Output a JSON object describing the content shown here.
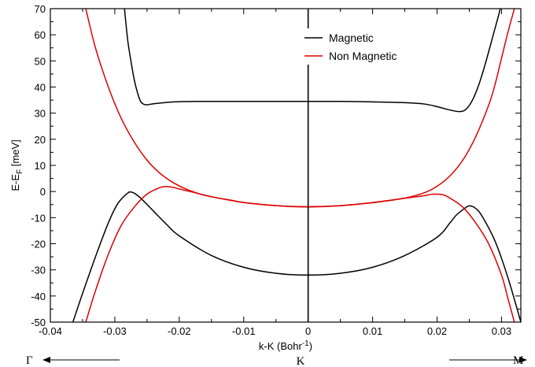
{
  "chart_data": {
    "type": "line",
    "xlabel": "k-K (Bohr",
    "xlabel_sup": "-1",
    "xlabel_close": ")",
    "ylabel": "E-E",
    "ylabel_sub": "F",
    "ylabel_unit": " [meV]",
    "xlim": [
      -0.04,
      0.033
    ],
    "ylim": [
      -50,
      70
    ],
    "xticks": [
      -0.04,
      -0.03,
      -0.02,
      -0.01,
      0,
      0.01,
      0.02,
      0.03
    ],
    "xtick_labels": [
      "-0.04",
      "-0.03",
      "-0.02",
      "-0.01",
      "0",
      "0.01",
      "0.02",
      "0.03"
    ],
    "yticks": [
      -50,
      -40,
      -30,
      -20,
      -10,
      0,
      10,
      20,
      30,
      40,
      50,
      60,
      70
    ],
    "ytick_labels": [
      "-50",
      "-40",
      "-30",
      "-20",
      "-10",
      "0",
      "10",
      "20",
      "30",
      "40",
      "50",
      "60",
      "70"
    ],
    "grid": false,
    "legend_position": "top-right",
    "legend_entries": [
      "Magnetic",
      "Non Magnetic"
    ],
    "colors": {
      "Magnetic": "#000000",
      "Non Magnetic": "#dd0000"
    },
    "vertical_line_x": 0,
    "symmetry_labels": {
      "left": "Γ",
      "center": "K",
      "right": "M"
    },
    "series": [
      {
        "name": "Magnetic",
        "curves": [
          [
            [
              -0.0285,
              70
            ],
            [
              -0.028,
              58
            ],
            [
              -0.0275,
              50
            ],
            [
              -0.027,
              43
            ],
            [
              -0.0265,
              38
            ],
            [
              -0.026,
              34.5
            ],
            [
              -0.0255,
              33.4
            ],
            [
              -0.025,
              33.2
            ],
            [
              -0.024,
              33.6
            ],
            [
              -0.022,
              34.1
            ],
            [
              -0.02,
              34.4
            ],
            [
              -0.015,
              34.5
            ],
            [
              -0.01,
              34.5
            ],
            [
              -0.005,
              34.5
            ],
            [
              0,
              34.5
            ],
            [
              0.005,
              34.5
            ],
            [
              0.01,
              34.3
            ],
            [
              0.015,
              34.0
            ],
            [
              0.018,
              33.5
            ],
            [
              0.02,
              32.5
            ],
            [
              0.022,
              31.2
            ],
            [
              0.0235,
              30.6
            ],
            [
              0.0245,
              31.5
            ],
            [
              0.0255,
              35
            ],
            [
              0.0265,
              41
            ],
            [
              0.0275,
              49
            ],
            [
              0.0285,
              58
            ],
            [
              0.0295,
              67
            ],
            [
              0.0298,
              70
            ]
          ],
          [
            [
              -0.0365,
              -50
            ],
            [
              -0.035,
              -39
            ],
            [
              -0.033,
              -25
            ],
            [
              -0.031,
              -12
            ],
            [
              -0.0295,
              -4.5
            ],
            [
              -0.028,
              -0.6
            ],
            [
              -0.0275,
              -0.2
            ],
            [
              -0.027,
              -0.6
            ],
            [
              -0.026,
              -2.5
            ],
            [
              -0.024,
              -7.5
            ],
            [
              -0.022,
              -12.5
            ],
            [
              -0.02,
              -17
            ],
            [
              -0.015,
              -24.5
            ],
            [
              -0.01,
              -29
            ],
            [
              -0.005,
              -31.3
            ],
            [
              0,
              -32
            ],
            [
              0.005,
              -31.3
            ],
            [
              0.01,
              -29
            ],
            [
              0.015,
              -24.5
            ],
            [
              0.02,
              -17.5
            ],
            [
              0.022,
              -12
            ],
            [
              0.023,
              -9
            ],
            [
              0.024,
              -7
            ],
            [
              0.025,
              -5.5
            ],
            [
              0.026,
              -6.5
            ],
            [
              0.027,
              -9.5
            ],
            [
              0.029,
              -19
            ],
            [
              0.031,
              -33
            ],
            [
              0.033,
              -50
            ]
          ]
        ]
      },
      {
        "name": "Non Magnetic",
        "curves": [
          [
            [
              -0.0345,
              70
            ],
            [
              -0.033,
              55
            ],
            [
              -0.031,
              40
            ],
            [
              -0.029,
              28
            ],
            [
              -0.027,
              19
            ],
            [
              -0.025,
              12
            ],
            [
              -0.023,
              7
            ],
            [
              -0.021,
              3.5
            ],
            [
              -0.019,
              1
            ],
            [
              -0.017,
              -0.8
            ],
            [
              -0.015,
              -2
            ],
            [
              -0.012,
              -3.3
            ],
            [
              -0.01,
              -4.2
            ],
            [
              -0.005,
              -5.4
            ],
            [
              0,
              -5.8
            ],
            [
              0.005,
              -5.4
            ],
            [
              0.01,
              -4.2
            ],
            [
              0.015,
              -2.5
            ],
            [
              0.018,
              -0.5
            ],
            [
              0.02,
              2
            ],
            [
              0.022,
              6
            ],
            [
              0.024,
              12
            ],
            [
              0.026,
              21
            ],
            [
              0.028,
              33
            ],
            [
              0.029,
              41
            ],
            [
              0.03,
              51
            ],
            [
              0.031,
              61
            ],
            [
              0.032,
              70
            ]
          ],
          [
            [
              -0.0345,
              -50
            ],
            [
              -0.033,
              -38
            ],
            [
              -0.031,
              -24
            ],
            [
              -0.029,
              -13
            ],
            [
              -0.027,
              -6
            ],
            [
              -0.025,
              -1
            ],
            [
              -0.023,
              1.5
            ],
            [
              -0.022,
              1.9
            ],
            [
              -0.021,
              1.6
            ],
            [
              -0.02,
              1.0
            ],
            [
              -0.018,
              -0.2
            ],
            [
              -0.015,
              -2
            ],
            [
              -0.01,
              -4.2
            ],
            [
              -0.005,
              -5.4
            ],
            [
              0,
              -5.9
            ],
            [
              0.005,
              -5.4
            ],
            [
              0.01,
              -4.3
            ],
            [
              0.015,
              -2.6
            ],
            [
              0.018,
              -1.6
            ],
            [
              0.019,
              -1.1
            ],
            [
              0.02,
              -1
            ],
            [
              0.021,
              -1.3
            ],
            [
              0.022,
              -2.5
            ],
            [
              0.024,
              -6
            ],
            [
              0.026,
              -12
            ],
            [
              0.028,
              -20
            ],
            [
              0.03,
              -32
            ],
            [
              0.031,
              -41
            ],
            [
              0.032,
              -50
            ]
          ]
        ]
      }
    ]
  }
}
